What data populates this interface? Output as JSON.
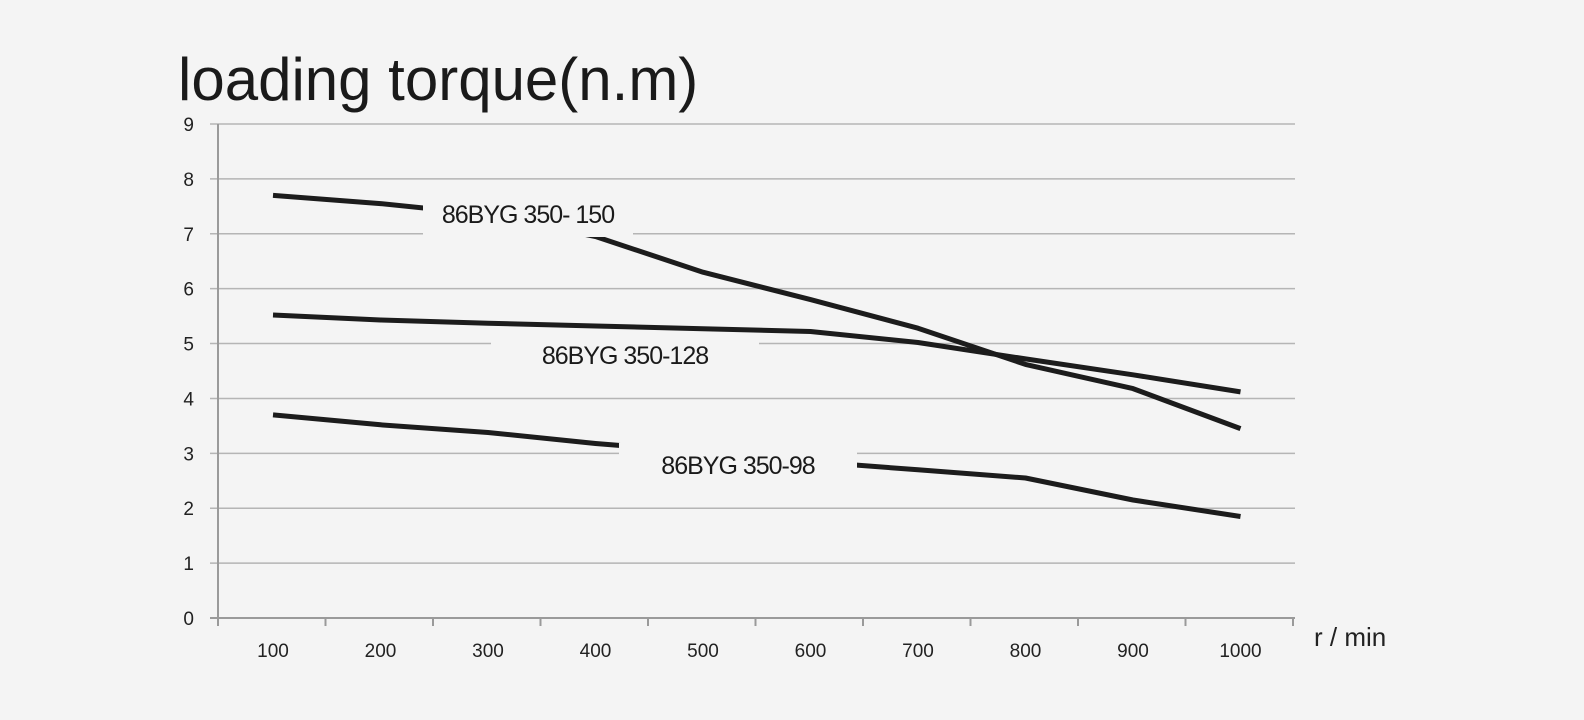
{
  "chart_data": {
    "type": "line",
    "title": "loading torque(n.m)",
    "xlabel": "r / min",
    "ylabel": "",
    "x": [
      100,
      200,
      300,
      400,
      500,
      600,
      700,
      800,
      900,
      1000
    ],
    "ylim": [
      0,
      9
    ],
    "yticks": [
      "0",
      "1",
      "2",
      "3",
      "4",
      "5",
      "6",
      "7",
      "8",
      "9"
    ],
    "xticks": [
      "100",
      "200",
      "300",
      "400",
      "500",
      "600",
      "700",
      "800",
      "900",
      "1000"
    ],
    "grid": true,
    "legend": "inline labels",
    "series": [
      {
        "name": "86BYG 350- 150",
        "values": [
          7.7,
          7.55,
          7.35,
          6.95,
          6.3,
          5.8,
          5.28,
          4.62,
          4.18,
          3.45
        ]
      },
      {
        "name": "86BYG 350-128",
        "values": [
          5.52,
          5.43,
          5.37,
          5.32,
          5.27,
          5.22,
          5.02,
          4.72,
          4.43,
          4.12
        ]
      },
      {
        "name": "86BYG 350-98",
        "values": [
          3.7,
          3.52,
          3.38,
          3.18,
          3.02,
          2.85,
          2.7,
          2.55,
          2.15,
          1.85
        ]
      }
    ],
    "colors": {
      "background": "#f4f4f4",
      "line": "#1c1c1c",
      "grid": "#b5b5b5",
      "label_box": "#f4f4f4"
    }
  }
}
